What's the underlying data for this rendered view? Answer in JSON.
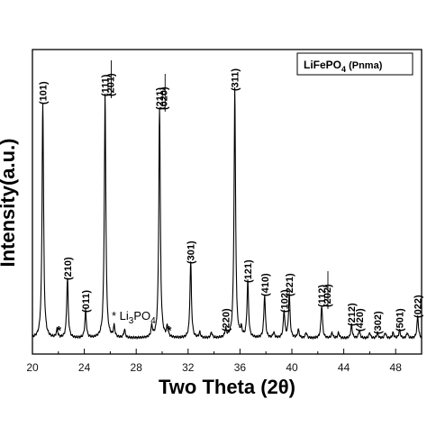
{
  "chart_data": {
    "type": "line",
    "title": "",
    "xlabel": "Two Theta (2θ)",
    "ylabel": "Intensity(a.u.)",
    "xlim": [
      20,
      50
    ],
    "xticks": [
      "20",
      "22",
      "24",
      "26",
      "28",
      "30",
      "32",
      "34",
      "36",
      "38",
      "40",
      "42",
      "44",
      "46",
      "48",
      "50"
    ],
    "grid": false,
    "legend": {
      "placement": "top-right",
      "main": "LiFePO",
      "sub": "4",
      "suffix": " (Pnma)"
    },
    "impurity_label": {
      "marker": "* Li",
      "sub1": "3",
      "mid": "PO",
      "sub2": "4"
    },
    "impurity_marks": [
      {
        "x": 21.9,
        "text": "*"
      },
      {
        "x": 30.4,
        "text": "*"
      }
    ],
    "baseline_intensity": 0.025,
    "peaks": [
      {
        "x": 20.8,
        "intensity": 0.87,
        "label": "(101)"
      },
      {
        "x": 22.7,
        "intensity": 0.22,
        "label": "(210)"
      },
      {
        "x": 24.1,
        "intensity": 0.1,
        "label": "(011)"
      },
      {
        "x": 25.6,
        "intensity": 0.9,
        "label": "(111)"
      },
      {
        "x": 29.8,
        "intensity": 0.85,
        "label": "(211)"
      },
      {
        "x": 32.2,
        "intensity": 0.28,
        "label": "(301)"
      },
      {
        "x": 34.9,
        "intensity": 0.03,
        "label": "(220)"
      },
      {
        "x": 35.6,
        "intensity": 0.92,
        "label": "(311)"
      },
      {
        "x": 36.6,
        "intensity": 0.21,
        "label": "(121)"
      },
      {
        "x": 37.9,
        "intensity": 0.16,
        "label": "(410)"
      },
      {
        "x": 39.4,
        "intensity": 0.1,
        "label": "(102)"
      },
      {
        "x": 39.8,
        "intensity": 0.16,
        "label": "(221)"
      },
      {
        "x": 42.3,
        "intensity": 0.12,
        "label": "(112)"
      },
      {
        "x": 44.6,
        "intensity": 0.05,
        "label": "(212)"
      },
      {
        "x": 45.2,
        "intensity": 0.03,
        "label": "(420)"
      },
      {
        "x": 46.6,
        "intensity": 0.02,
        "label": "(302)"
      },
      {
        "x": 48.3,
        "intensity": 0.03,
        "label": "(501)"
      },
      {
        "x": 49.7,
        "intensity": 0.08,
        "label": "(022)"
      }
    ],
    "paired_labels": [
      {
        "x": 26.0,
        "label": "(201)"
      },
      {
        "x": 30.1,
        "label": "(020)"
      },
      {
        "x": 42.7,
        "label": "(202)"
      }
    ],
    "minor_peaks": [
      {
        "x": 21.9,
        "intensity": 0.03
      },
      {
        "x": 26.3,
        "intensity": 0.04
      },
      {
        "x": 27.1,
        "intensity": 0.03
      },
      {
        "x": 29.2,
        "intensity": 0.04
      },
      {
        "x": 30.4,
        "intensity": 0.04
      },
      {
        "x": 32.9,
        "intensity": 0.02
      },
      {
        "x": 33.8,
        "intensity": 0.02
      },
      {
        "x": 36.1,
        "intensity": 0.03
      },
      {
        "x": 38.6,
        "intensity": 0.02
      },
      {
        "x": 40.5,
        "intensity": 0.03
      },
      {
        "x": 41.1,
        "intensity": 0.02
      },
      {
        "x": 43.1,
        "intensity": 0.02
      },
      {
        "x": 43.6,
        "intensity": 0.02
      },
      {
        "x": 46.0,
        "intensity": 0.02
      },
      {
        "x": 47.2,
        "intensity": 0.02
      },
      {
        "x": 47.8,
        "intensity": 0.02
      },
      {
        "x": 48.9,
        "intensity": 0.02
      }
    ]
  }
}
